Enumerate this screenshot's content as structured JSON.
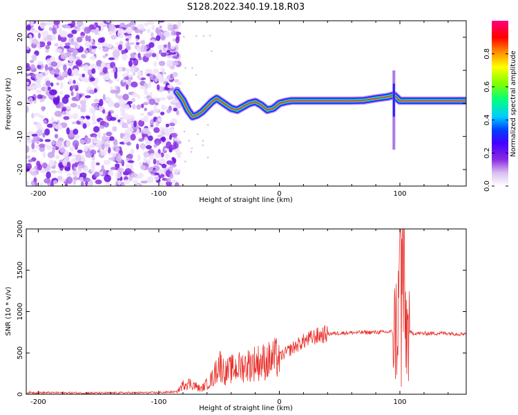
{
  "figure": {
    "title": "S128.2022.340.19.18.R03"
  },
  "chart_data": [
    {
      "type": "heatmap",
      "title": "S128.2022.340.19.18.R03",
      "xlabel": "Height of straight line (km)",
      "ylabel": "Frequency (Hz)",
      "xlim": [
        -210,
        155
      ],
      "ylim": [
        -25,
        25
      ],
      "x_ticks": [
        -200,
        -100,
        0,
        100
      ],
      "x_tick_labels": [
        "-200",
        "-100",
        "0",
        "100"
      ],
      "y_ticks": [
        -20,
        -10,
        0,
        10,
        20
      ],
      "y_tick_labels": [
        "-20",
        "-10",
        "0",
        "10",
        "20"
      ],
      "colorbar": {
        "label": "Normalized spectral amplitude",
        "range": [
          0,
          1
        ],
        "ticks": [
          0.0,
          0.2,
          0.4,
          0.6,
          0.8
        ],
        "tick_labels": [
          "0.0",
          "0.2",
          "0.4",
          "0.6",
          "0.8"
        ],
        "colormap": [
          "#ffffff",
          "#d8c0f0",
          "#8a2be2",
          "#4400ff",
          "#0040ff",
          "#00ccff",
          "#00ff80",
          "#80ff00",
          "#ffff00",
          "#ff8000",
          "#ff0000",
          "#ff0080"
        ]
      },
      "ridge": [
        [
          -85,
          3.5
        ],
        [
          -80,
          1.0
        ],
        [
          -76,
          -2.0
        ],
        [
          -72,
          -4.0
        ],
        [
          -68,
          -3.5
        ],
        [
          -64,
          -2.5
        ],
        [
          -60,
          -1.0
        ],
        [
          -56,
          0.5
        ],
        [
          -52,
          1.5
        ],
        [
          -48,
          0.5
        ],
        [
          -44,
          -0.5
        ],
        [
          -40,
          -1.5
        ],
        [
          -35,
          -2.0
        ],
        [
          -30,
          -1.0
        ],
        [
          -25,
          0.0
        ],
        [
          -20,
          0.5
        ],
        [
          -15,
          -0.5
        ],
        [
          -10,
          -2.0
        ],
        [
          -5,
          -1.5
        ],
        [
          0,
          0.0
        ],
        [
          5,
          0.5
        ],
        [
          10,
          0.8
        ],
        [
          20,
          0.8
        ],
        [
          40,
          0.8
        ],
        [
          60,
          0.8
        ],
        [
          70,
          0.9
        ],
        [
          80,
          1.5
        ],
        [
          90,
          2.0
        ],
        [
          95,
          2.5
        ],
        [
          100,
          0.8
        ],
        [
          120,
          0.8
        ],
        [
          155,
          0.8
        ]
      ]
    },
    {
      "type": "line",
      "xlabel": "Height of straight line (km)",
      "ylabel": "SNR (10 * v/v)",
      "xlim": [
        -210,
        155
      ],
      "ylim": [
        0,
        2000
      ],
      "x_ticks": [
        -200,
        -100,
        0,
        100
      ],
      "x_tick_labels": [
        "-200",
        "-100",
        "0",
        "100"
      ],
      "y_ticks": [
        0,
        500,
        1000,
        1500,
        2000
      ],
      "y_tick_labels": [
        "0",
        "500",
        "1000",
        "1500",
        "2000"
      ],
      "line_color": "#e8302a",
      "x": [
        -210,
        -150,
        -100,
        -85,
        -78,
        -72,
        -65,
        -55,
        -50,
        -45,
        -40,
        -30,
        -20,
        -10,
        0,
        10,
        20,
        30,
        40,
        50,
        60,
        70,
        80,
        90,
        95,
        98,
        100,
        102,
        104,
        106,
        110,
        120,
        140,
        150,
        155
      ],
      "y": [
        20,
        15,
        20,
        30,
        140,
        120,
        60,
        200,
        380,
        260,
        300,
        340,
        380,
        400,
        450,
        550,
        640,
        700,
        730,
        740,
        745,
        748,
        750,
        752,
        760,
        820,
        1250,
        1800,
        900,
        760,
        740,
        735,
        740,
        730,
        740
      ]
    }
  ]
}
